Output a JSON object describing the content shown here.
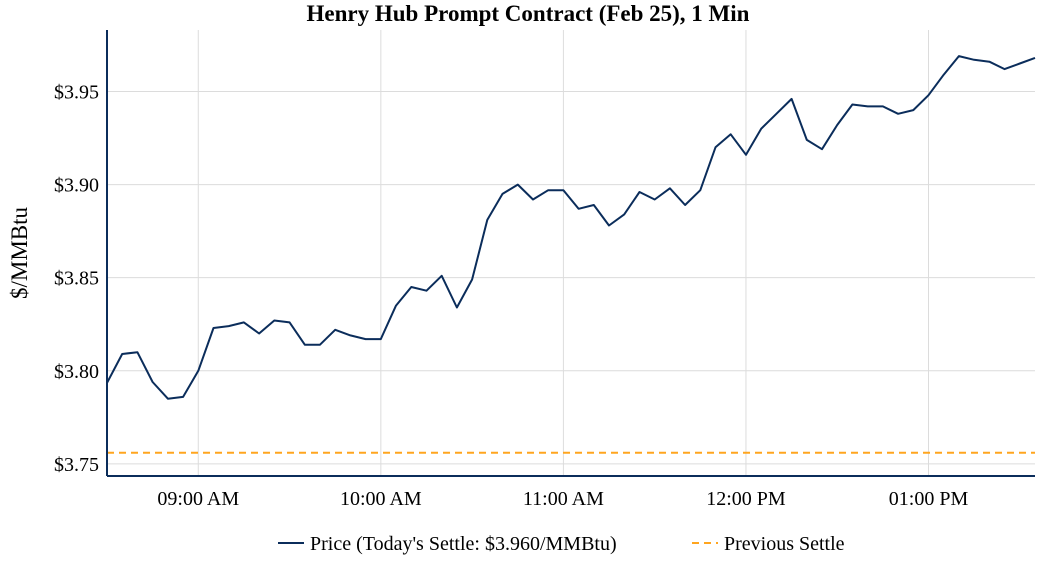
{
  "chart_data": {
    "type": "line",
    "title": "Henry Hub Prompt Contract (Feb 25), 1 Min",
    "ylabel": "$/MMBtu",
    "xlabel": "",
    "ylim": [
      3.7435,
      3.983
    ],
    "xlim": [
      "08:30",
      "13:35"
    ],
    "yticks": [
      3.75,
      3.8,
      3.85,
      3.9,
      3.95
    ],
    "ytick_labels": [
      "$3.75",
      "$3.80",
      "$3.85",
      "$3.90",
      "$3.95"
    ],
    "xticks": [
      "09:00",
      "10:00",
      "11:00",
      "12:00",
      "13:00"
    ],
    "xtick_labels": [
      "09:00 AM",
      "10:00 AM",
      "11:00 AM",
      "12:00 PM",
      "01:00 PM"
    ],
    "grid": true,
    "legend_position": "bottom",
    "series": [
      {
        "name": "Price (Today's Settle: $3.960/MMBtu)",
        "color": "#0b2d5b",
        "style": "solid",
        "x": [
          "08:30",
          "08:35",
          "08:40",
          "08:45",
          "08:50",
          "08:55",
          "09:00",
          "09:05",
          "09:10",
          "09:15",
          "09:20",
          "09:25",
          "09:30",
          "09:35",
          "09:40",
          "09:45",
          "09:50",
          "09:55",
          "10:00",
          "10:05",
          "10:10",
          "10:15",
          "10:20",
          "10:25",
          "10:30",
          "10:35",
          "10:40",
          "10:45",
          "10:50",
          "10:55",
          "11:00",
          "11:05",
          "11:10",
          "11:15",
          "11:20",
          "11:25",
          "11:30",
          "11:35",
          "11:40",
          "11:45",
          "11:50",
          "11:55",
          "12:00",
          "12:05",
          "12:10",
          "12:15",
          "12:20",
          "12:25",
          "12:30",
          "12:35",
          "12:40",
          "12:45",
          "12:50",
          "12:55",
          "13:00",
          "13:05",
          "13:10",
          "13:15",
          "13:20",
          "13:25",
          "13:30",
          "13:35"
        ],
        "y": [
          3.7935,
          3.809,
          3.81,
          3.794,
          3.785,
          3.786,
          3.8,
          3.823,
          3.824,
          3.826,
          3.82,
          3.827,
          3.826,
          3.814,
          3.814,
          3.822,
          3.819,
          3.817,
          3.817,
          3.835,
          3.845,
          3.843,
          3.851,
          3.834,
          3.849,
          3.881,
          3.895,
          3.9,
          3.892,
          3.897,
          3.897,
          3.887,
          3.889,
          3.878,
          3.884,
          3.896,
          3.892,
          3.898,
          3.889,
          3.897,
          3.92,
          3.927,
          3.916,
          3.93,
          3.938,
          3.946,
          3.924,
          3.919,
          3.932,
          3.943,
          3.942,
          3.942,
          3.938,
          3.94,
          3.948,
          3.959,
          3.969,
          3.967,
          3.966,
          3.962,
          3.965,
          3.968
        ]
      },
      {
        "name": "Previous Settle",
        "color": "#ffa51f",
        "style": "dashed",
        "value": 3.756
      }
    ]
  }
}
